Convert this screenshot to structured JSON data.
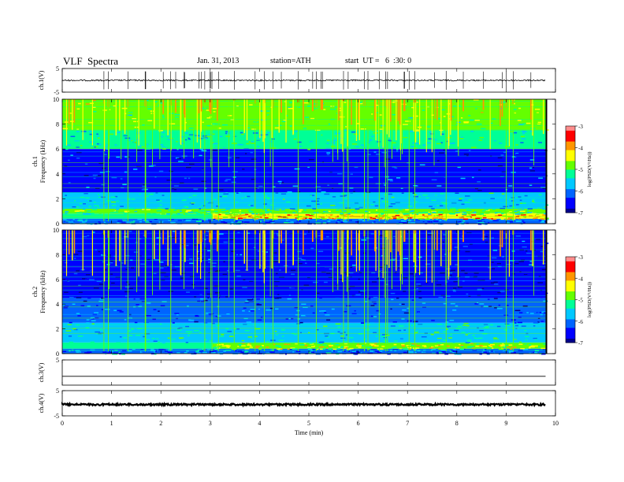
{
  "header": {
    "title": "VLF  Spectra",
    "date": "Jan. 31, 2013",
    "station": "station=ATH",
    "start": "start  UT =   6  :30: 0"
  },
  "colors": {
    "colormap": [
      "#00008c",
      "#0000ff",
      "#0064ff",
      "#00c8ff",
      "#00ff96",
      "#64ff00",
      "#ffff00",
      "#ff9600",
      "#ff0000",
      "#ff8c8c",
      "#ffffff"
    ],
    "trace": "#000000"
  },
  "chart_data": [
    {
      "type": "line",
      "panel": "ch1-waveform",
      "ylabel": "ch.1(V)",
      "ylim": [
        -5,
        5
      ],
      "yticks": [
        "5",
        "-5"
      ],
      "xlim": [
        0,
        10
      ],
      "series": [
        {
          "baseline": 0,
          "noise_amplitude": 0.3,
          "end_time": 9.8
        }
      ]
    },
    {
      "type": "heatmap",
      "panel": "ch1-spectrogram",
      "ylabel": "ch.1\nFrequency (kHz)",
      "ylim": [
        0,
        10
      ],
      "yticks": [
        "0",
        "2",
        "4",
        "6",
        "8",
        "10"
      ],
      "xlim": [
        0,
        10
      ],
      "end_time": 9.8,
      "colorbar": {
        "label": "log(PSD(V²/Hz))",
        "range": [
          -7,
          -3
        ],
        "ticks": [
          "-3",
          "-4",
          "-5",
          "-6",
          "-7"
        ]
      },
      "bands": [
        {
          "f": [
            0,
            0.4
          ],
          "log_psd": -6.0
        },
        {
          "f": [
            0.4,
            0.8
          ],
          "log_psd": -4.2,
          "from_time": 3.05
        },
        {
          "f": [
            0.8,
            1.2
          ],
          "log_psd": -5.0
        },
        {
          "f": [
            1.2,
            2.5
          ],
          "log_psd": -5.6
        },
        {
          "f": [
            2.5,
            6.0
          ],
          "log_psd": -6.4
        },
        {
          "f": [
            6.0,
            7.5
          ],
          "log_psd": -5.4
        },
        {
          "f": [
            7.5,
            10
          ],
          "log_psd": -4.8
        }
      ],
      "level_steps": [
        3.05,
        4.4
      ]
    },
    {
      "type": "heatmap",
      "panel": "ch2-spectrogram",
      "ylabel": "ch.2\nFrequency (kHz)",
      "ylim": [
        0,
        10
      ],
      "yticks": [
        "0",
        "2",
        "4",
        "6",
        "8",
        "10"
      ],
      "xlim": [
        0,
        10
      ],
      "end_time": 9.8,
      "colorbar": {
        "label": "log(PSD(V²/Hz))",
        "range": [
          -7,
          -3
        ],
        "ticks": [
          "-3",
          "-4",
          "-5",
          "-6",
          "-7"
        ]
      },
      "bands": [
        {
          "f": [
            0,
            0.4
          ],
          "log_psd": -6.0
        },
        {
          "f": [
            0.4,
            0.9
          ],
          "log_psd": -4.6,
          "from_time": 3.05
        },
        {
          "f": [
            0.9,
            2.5
          ],
          "log_psd": -5.5
        },
        {
          "f": [
            2.5,
            4.5
          ],
          "log_psd": -6.2
        },
        {
          "f": [
            4.5,
            7.0
          ],
          "log_psd": -6.7
        },
        {
          "f": [
            7.0,
            10
          ],
          "log_psd": -6.4
        }
      ],
      "level_steps": [
        3.05,
        4.4
      ]
    },
    {
      "type": "line",
      "panel": "ch3-waveform",
      "ylabel": "ch.3(V)",
      "ylim": [
        -5,
        5
      ],
      "yticks": [
        "5"
      ],
      "xlim": [
        0,
        10
      ],
      "series": [
        {
          "baseline": -1.5,
          "noise_amplitude": 0,
          "end_time": 9.8
        }
      ]
    },
    {
      "type": "line",
      "panel": "ch4-waveform",
      "ylabel": "ch.4(V)",
      "ylim": [
        -5,
        5
      ],
      "yticks": [
        "5",
        "-5"
      ],
      "xlim": [
        0,
        10
      ],
      "xlabel": "Time  (min)",
      "xticks": [
        "0",
        "1",
        "2",
        "3",
        "4",
        "5",
        "6",
        "7",
        "8",
        "9",
        "10"
      ],
      "series": [
        {
          "baseline": -0.5,
          "noise_amplitude": 0.35,
          "end_time": 9.8
        }
      ]
    }
  ]
}
